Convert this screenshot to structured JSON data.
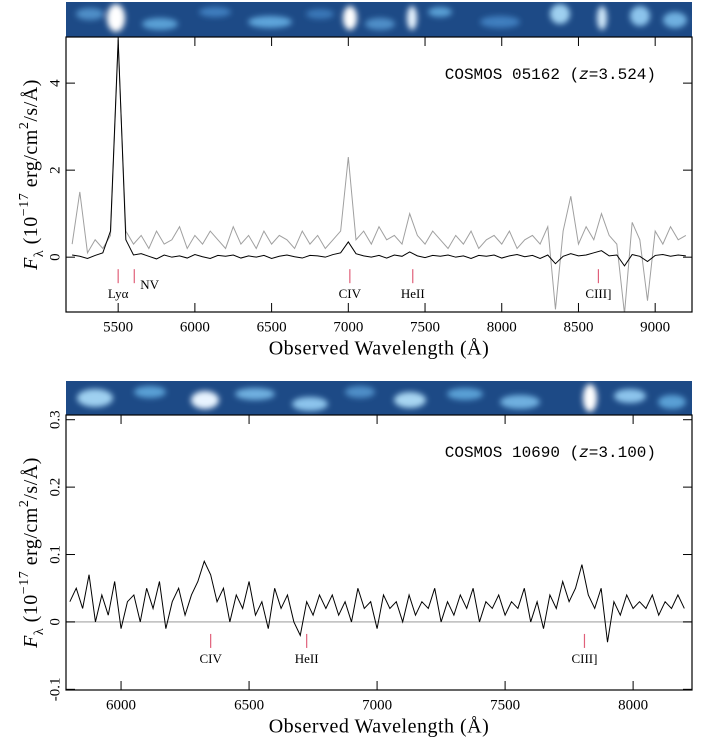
{
  "chart_data": [
    {
      "type": "line",
      "x": [
        5200,
        5250,
        5300,
        5350,
        5400,
        5450,
        5500,
        5550,
        5600,
        5650,
        5700,
        5750,
        5800,
        5850,
        5900,
        5950,
        6000,
        6050,
        6100,
        6150,
        6200,
        6250,
        6300,
        6350,
        6400,
        6450,
        6500,
        6550,
        6600,
        6650,
        6700,
        6750,
        6800,
        6850,
        6900,
        6950,
        7000,
        7050,
        7100,
        7150,
        7200,
        7250,
        7300,
        7350,
        7400,
        7450,
        7500,
        7550,
        7600,
        7650,
        7700,
        7750,
        7800,
        7850,
        7900,
        7950,
        8000,
        8050,
        8100,
        8150,
        8200,
        8250,
        8300,
        8350,
        8400,
        8450,
        8500,
        8550,
        8600,
        8650,
        8700,
        8750,
        8800,
        8850,
        8900,
        8950,
        9000,
        9050,
        9100,
        9150,
        9200
      ],
      "series": [
        {
          "color": "#a0a0a0",
          "values": [
            0.3,
            1.5,
            0.1,
            0.4,
            0.2,
            0.5,
            4.9,
            0.6,
            0.3,
            0.5,
            0.2,
            0.6,
            0.3,
            0.4,
            0.7,
            0.2,
            0.5,
            0.3,
            0.6,
            0.4,
            0.2,
            0.7,
            0.3,
            0.5,
            0.2,
            0.6,
            0.3,
            0.5,
            0.4,
            0.2,
            0.6,
            0.3,
            0.5,
            0.2,
            0.4,
            0.6,
            2.3,
            0.4,
            0.6,
            0.3,
            0.7,
            0.4,
            0.5,
            0.3,
            1.0,
            0.5,
            0.3,
            0.6,
            0.4,
            0.2,
            0.5,
            0.3,
            0.6,
            0.2,
            0.4,
            0.5,
            0.3,
            0.6,
            0.2,
            0.4,
            0.5,
            0.3,
            0.7,
            -1.2,
            0.6,
            1.4,
            0.3,
            0.7,
            0.4,
            1.0,
            0.5,
            0.3,
            -1.3,
            0.8,
            0.4,
            -1.0,
            0.6,
            0.3,
            0.7,
            0.4,
            0.5
          ]
        },
        {
          "color": "#000000",
          "values": [
            0.05,
            0.02,
            -0.03,
            0.04,
            0.1,
            0.6,
            5.0,
            0.4,
            0.05,
            0.08,
            0.02,
            -0.04,
            0.05,
            0.0,
            0.03,
            -0.02,
            0.06,
            0.01,
            -0.03,
            0.04,
            0.02,
            0.05,
            -0.02,
            0.03,
            0.0,
            0.04,
            -0.03,
            0.02,
            0.05,
            0.01,
            -0.02,
            0.04,
            0.03,
            0.0,
            0.06,
            0.1,
            0.35,
            0.08,
            0.03,
            0.0,
            0.04,
            -0.02,
            0.05,
            0.02,
            0.12,
            0.03,
            -0.01,
            0.04,
            0.02,
            0.05,
            0.0,
            0.03,
            -0.03,
            0.04,
            0.02,
            0.05,
            -0.02,
            0.03,
            0.06,
            0.01,
            0.04,
            -0.03,
            0.05,
            -0.15,
            0.02,
            0.08,
            0.03,
            0.05,
            0.1,
            0.15,
            0.03,
            0.05,
            -0.2,
            0.06,
            0.02,
            -0.1,
            0.04,
            0.06,
            0.02,
            0.05,
            0.03
          ]
        }
      ],
      "xlim": [
        5160,
        9240
      ],
      "ylim": [
        -1.26,
        5.06
      ],
      "xticks": [
        5500,
        6000,
        6500,
        7000,
        7500,
        8000,
        8500,
        9000
      ],
      "yticks": [
        0,
        2,
        4
      ],
      "x_label": "Observed Wavelength (Å)",
      "y_label": [
        "F",
        "λ",
        " (10",
        "−17",
        " erg/cm",
        "2",
        "/s/Å)"
      ],
      "annotation": [
        "COSMOS 05162 (",
        "z",
        "=3.524)"
      ],
      "marker_color": "#e0607a",
      "lines": [
        {
          "label": "Lyα",
          "x": 5500
        },
        {
          "label": "NV",
          "x": 5605
        },
        {
          "label": "CIV",
          "x": 7010
        },
        {
          "label": "HeII",
          "x": 7420
        },
        {
          "label": "CIII]",
          "x": 8630
        }
      ]
    },
    {
      "type": "line",
      "x": [
        5800,
        5825,
        5850,
        5875,
        5900,
        5925,
        5950,
        5975,
        6000,
        6025,
        6050,
        6075,
        6100,
        6125,
        6150,
        6175,
        6200,
        6225,
        6250,
        6275,
        6300,
        6325,
        6350,
        6375,
        6400,
        6425,
        6450,
        6475,
        6500,
        6525,
        6550,
        6575,
        6600,
        6625,
        6650,
        6675,
        6700,
        6725,
        6750,
        6775,
        6800,
        6825,
        6850,
        6875,
        6900,
        6925,
        6950,
        6975,
        7000,
        7025,
        7050,
        7075,
        7100,
        7125,
        7150,
        7175,
        7200,
        7225,
        7250,
        7275,
        7300,
        7325,
        7350,
        7375,
        7400,
        7425,
        7450,
        7475,
        7500,
        7525,
        7550,
        7575,
        7600,
        7625,
        7650,
        7675,
        7700,
        7725,
        7750,
        7775,
        7800,
        7825,
        7850,
        7875,
        7900,
        7925,
        7950,
        7975,
        8000,
        8025,
        8050,
        8075,
        8100,
        8125,
        8150,
        8175,
        8200
      ],
      "series": [
        {
          "color": "#000000",
          "values": [
            0.03,
            0.05,
            0.02,
            0.07,
            0.0,
            0.04,
            0.01,
            0.06,
            -0.01,
            0.03,
            0.04,
            0.0,
            0.05,
            0.02,
            0.06,
            -0.01,
            0.03,
            0.05,
            0.01,
            0.04,
            0.06,
            0.09,
            0.07,
            0.03,
            0.05,
            0.0,
            0.04,
            0.02,
            0.06,
            0.01,
            0.03,
            -0.01,
            0.05,
            0.02,
            0.04,
            0.0,
            -0.02,
            0.03,
            0.01,
            0.04,
            0.02,
            0.04,
            0.01,
            0.03,
            0.0,
            0.05,
            0.02,
            0.03,
            -0.01,
            0.04,
            0.02,
            0.03,
            0.0,
            0.04,
            0.01,
            0.03,
            0.02,
            0.05,
            0.0,
            0.03,
            0.01,
            0.04,
            0.02,
            0.05,
            0.0,
            0.03,
            0.02,
            0.04,
            0.01,
            0.03,
            0.02,
            0.05,
            0.0,
            0.03,
            -0.01,
            0.04,
            0.02,
            0.06,
            0.03,
            0.05,
            0.085,
            0.04,
            0.02,
            0.05,
            -0.03,
            0.03,
            0.01,
            0.04,
            0.02,
            0.03,
            0.02,
            0.04,
            0.01,
            0.03,
            0.02,
            0.04,
            0.02
          ]
        }
      ],
      "xlim": [
        5785,
        8230
      ],
      "ylim": [
        -0.101,
        0.307
      ],
      "xticks": [
        6000,
        6500,
        7000,
        7500,
        8000
      ],
      "yticks": [
        -0.1,
        0,
        0.1,
        0.2,
        0.3
      ],
      "zero_line": 0,
      "zero_line_color": "#bbbbbb",
      "x_label": "Observed Wavelength (Å)",
      "y_label": [
        "F",
        "λ",
        " (10",
        "−17",
        " erg/cm",
        "2",
        "/s/Å)"
      ],
      "annotation": [
        "COSMOS 10690 (",
        "z",
        "=3.100)"
      ],
      "marker_color": "#e0607a",
      "lines": [
        {
          "label": "CIV",
          "x": 6350
        },
        {
          "label": "HeII",
          "x": 6725
        },
        {
          "label": "CIII]",
          "x": 7810
        }
      ]
    }
  ]
}
